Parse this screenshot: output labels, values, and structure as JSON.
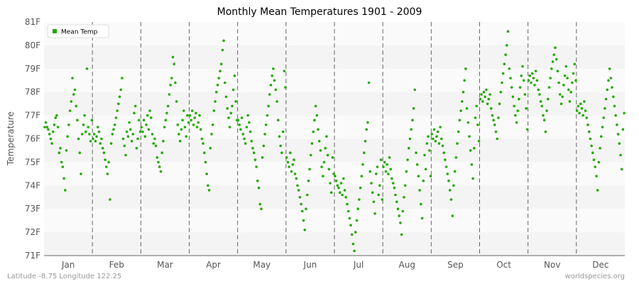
{
  "chart_data": {
    "type": "scatter",
    "title": "Monthly Mean Temperatures 1901 - 2009",
    "ylabel": "Temperature",
    "xlabel": "",
    "y_ticks": [
      "71F",
      "72F",
      "73F",
      "74F",
      "75F",
      "76F",
      "77F",
      "78F",
      "79F",
      "80F",
      "81F"
    ],
    "ylim": [
      71,
      81
    ],
    "categories": [
      "Jan",
      "Feb",
      "Mar",
      "Apr",
      "May",
      "Jun",
      "Jul",
      "Aug",
      "Sep",
      "Oct",
      "Nov",
      "Dec"
    ],
    "grid": "horizontal bands with dashed vertical month separators",
    "legend": {
      "placement": "top-left",
      "label": "Mean Temp"
    },
    "point_color": "#22aa00",
    "series": [
      {
        "name": "Mean Temp",
        "monthly": [
          [
            76.5,
            76.7,
            76.5,
            76.4,
            76.2,
            76.0,
            75.8,
            76.3,
            76.6,
            76.9,
            77.0,
            76.5,
            75.4,
            75.6,
            75.0,
            74.8,
            74.3,
            73.8,
            75.5,
            76.1,
            76.6,
            77.2,
            77.6,
            78.6,
            77.9,
            78.1,
            77.4,
            76.8,
            76.0,
            75.4,
            74.5,
            76.2,
            76.6,
            77.0,
            76.3,
            79.0,
            76.5,
            76.2,
            75.9,
            76.8
          ],
          [
            76.0,
            76.2,
            75.9,
            76.1,
            76.5,
            76.3,
            75.8,
            76.0,
            75.6,
            75.4,
            75.1,
            74.8,
            74.5,
            75.0,
            73.4,
            75.8,
            76.2,
            76.4,
            76.6,
            76.9,
            77.2,
            77.5,
            77.8,
            78.1,
            78.6,
            76.0,
            75.7,
            75.3,
            76.3,
            76.1,
            76.7,
            76.4,
            75.9,
            76.2,
            77.1,
            77.4,
            75.6,
            76.0,
            76.8,
            76.3
          ],
          [
            76.5,
            76.3,
            76.8,
            76.1,
            76.6,
            77.0,
            76.4,
            77.2,
            76.9,
            76.2,
            75.8,
            76.0,
            75.7,
            75.2,
            75.0,
            74.8,
            74.6,
            75.4,
            75.9,
            76.5,
            76.8,
            77.1,
            77.4,
            77.9,
            78.3,
            78.6,
            79.5,
            79.2,
            78.4,
            77.6,
            76.6,
            76.2,
            75.9,
            76.4,
            76.8,
            77.2,
            76.5,
            76.1,
            77.0,
            76.7
          ],
          [
            77.0,
            76.8,
            77.2,
            76.6,
            76.9,
            77.1,
            76.5,
            76.7,
            77.0,
            76.4,
            76.0,
            75.8,
            75.4,
            75.0,
            74.5,
            74.0,
            73.8,
            75.6,
            76.2,
            76.6,
            77.2,
            77.6,
            78.0,
            78.3,
            78.6,
            78.9,
            79.2,
            79.8,
            80.2,
            78.4,
            77.8,
            77.3,
            76.9,
            76.5,
            77.1,
            77.4,
            78.1,
            78.7,
            77.6,
            76.8
          ],
          [
            76.8,
            76.6,
            76.4,
            76.9,
            76.2,
            76.0,
            75.8,
            76.5,
            77.0,
            76.7,
            76.3,
            75.9,
            75.6,
            75.4,
            75.1,
            74.8,
            74.2,
            73.9,
            73.2,
            73.0,
            75.2,
            75.7,
            76.2,
            76.6,
            77.0,
            77.4,
            77.9,
            78.3,
            78.7,
            79.0,
            78.5,
            78.1,
            77.6,
            76.8,
            76.1,
            75.7,
            75.4,
            76.3,
            78.9,
            78.2
          ],
          [
            75.2,
            75.0,
            74.8,
            75.4,
            74.6,
            74.9,
            75.1,
            74.5,
            74.3,
            74.0,
            73.8,
            73.5,
            73.2,
            72.9,
            72.5,
            72.1,
            73.0,
            73.6,
            74.2,
            74.7,
            75.3,
            75.8,
            76.3,
            76.8,
            77.4,
            77.0,
            76.4,
            75.9,
            75.5,
            74.8,
            74.4,
            75.0,
            75.6,
            76.1,
            75.3,
            74.7,
            74.1,
            73.7,
            75.2,
            74.5
          ],
          [
            74.4,
            74.2,
            74.0,
            73.9,
            73.7,
            74.1,
            73.6,
            74.3,
            73.8,
            73.5,
            73.2,
            72.9,
            72.6,
            72.3,
            71.9,
            71.5,
            71.2,
            72.0,
            72.5,
            73.0,
            73.4,
            73.9,
            74.4,
            74.9,
            75.4,
            75.9,
            76.4,
            76.7,
            78.4,
            74.6,
            74.1,
            73.7,
            73.3,
            72.8,
            74.5,
            74.8,
            73.6,
            74.0,
            75.1,
            73.4
          ],
          [
            74.8,
            75.0,
            74.6,
            74.9,
            74.5,
            75.2,
            74.7,
            74.3,
            74.1,
            73.9,
            73.6,
            73.3,
            73.0,
            72.7,
            72.4,
            71.9,
            72.9,
            73.5,
            74.0,
            74.6,
            75.1,
            75.6,
            76.0,
            76.4,
            76.8,
            77.3,
            78.1,
            75.4,
            74.9,
            74.4,
            73.8,
            73.2,
            72.6,
            74.2,
            75.3,
            74.7,
            75.8,
            76.1,
            75.5,
            74.4
          ],
          [
            76.2,
            76.0,
            76.4,
            75.9,
            76.1,
            76.3,
            75.8,
            76.5,
            76.0,
            75.7,
            75.4,
            75.1,
            74.8,
            74.5,
            74.2,
            73.8,
            73.4,
            72.7,
            74.0,
            74.6,
            75.2,
            75.8,
            76.3,
            76.8,
            77.2,
            77.6,
            78.0,
            78.5,
            79.0,
            77.3,
            76.7,
            76.1,
            75.5,
            74.9,
            74.3,
            75.6,
            76.9,
            77.4,
            76.6,
            75.9
          ],
          [
            77.7,
            77.9,
            77.6,
            78.0,
            77.8,
            78.1,
            77.5,
            77.7,
            77.9,
            77.3,
            77.0,
            76.8,
            76.6,
            76.3,
            76.0,
            76.9,
            77.5,
            78.0,
            78.4,
            78.8,
            79.2,
            79.6,
            80.0,
            80.6,
            79.0,
            78.6,
            78.2,
            77.8,
            77.4,
            77.0,
            76.7,
            77.2,
            77.7,
            78.2,
            78.7,
            79.1,
            78.5,
            77.9,
            77.3,
            76.4
          ],
          [
            78.5,
            78.7,
            78.4,
            78.8,
            78.6,
            78.3,
            78.9,
            78.5,
            78.1,
            77.9,
            77.6,
            77.4,
            77.0,
            76.8,
            76.3,
            77.2,
            77.7,
            78.2,
            78.6,
            79.0,
            79.3,
            79.6,
            79.9,
            79.4,
            78.9,
            78.4,
            77.9,
            77.5,
            77.8,
            78.3,
            78.7,
            79.1,
            78.6,
            78.1,
            77.6,
            78.0,
            78.4,
            78.8,
            79.2,
            78.5
          ],
          [
            77.2,
            77.4,
            77.1,
            77.5,
            77.3,
            77.0,
            77.6,
            77.2,
            76.9,
            76.6,
            76.3,
            76.0,
            75.7,
            75.4,
            75.1,
            74.8,
            74.4,
            73.8,
            75.0,
            75.6,
            76.1,
            76.5,
            76.9,
            77.3,
            77.7,
            78.1,
            78.5,
            79.0,
            78.6,
            78.2,
            77.8,
            77.4,
            77.0,
            76.6,
            76.2,
            75.8,
            75.3,
            74.7,
            76.4,
            77.1
          ]
        ]
      }
    ],
    "footer_left": "Latitude -8.75 Longitude 122.25",
    "footer_right": "worldspecies.org"
  }
}
